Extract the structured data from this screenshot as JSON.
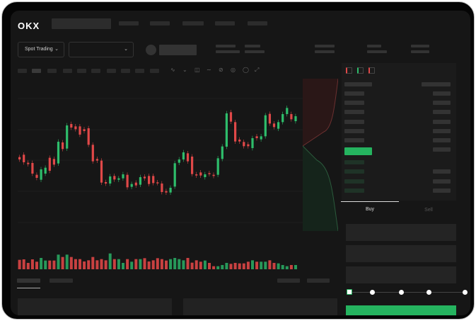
{
  "brand": {
    "logo": "OKX"
  },
  "toolbar": {
    "market_type": "Spot Trading",
    "pair_selector": ""
  },
  "trade_form": {
    "tabs": [
      "Buy",
      "Sell"
    ],
    "active_tab": "Buy",
    "leverage_steps": 5,
    "selected_step": 0
  },
  "colors": {
    "up": "#2ebd6b",
    "down": "#e04848",
    "background": "#161616",
    "accent": "#25b35f"
  },
  "chart_data": {
    "type": "candlestick",
    "candles": [
      [
        49,
        48
      ],
      [
        50,
        46.8
      ],
      [
        46.6,
        46
      ],
      [
        46.5,
        42
      ],
      [
        41.5,
        40.2
      ],
      [
        39.4,
        43.8
      ],
      [
        42,
        44.5
      ],
      [
        48.7,
        43.2
      ],
      [
        48.2,
        45.8
      ],
      [
        46.3,
        55.5
      ],
      [
        55.2,
        52.4
      ],
      [
        52.6,
        62.4
      ],
      [
        63,
        61.5
      ],
      [
        62,
        60.8
      ],
      [
        62,
        58.5
      ],
      [
        60.8,
        60
      ],
      [
        61.2,
        54.2
      ],
      [
        54.2,
        47.2
      ],
      [
        48.2,
        47.5
      ],
      [
        47.5,
        38.2
      ],
      [
        38.4,
        37.8
      ],
      [
        37.8,
        40.8
      ],
      [
        41,
        39.5
      ],
      [
        39.4,
        40
      ],
      [
        40,
        41.7
      ],
      [
        41.5,
        36.2
      ],
      [
        36.4,
        37.6
      ],
      [
        38.2,
        37
      ],
      [
        37.3,
        40.5
      ],
      [
        40.7,
        40
      ],
      [
        41,
        37.6
      ],
      [
        41,
        38
      ],
      [
        38.3,
        38
      ],
      [
        37.8,
        34.2
      ],
      [
        34.6,
        34
      ],
      [
        34,
        36
      ],
      [
        36.5,
        46.4
      ],
      [
        46.6,
        48
      ],
      [
        48,
        51
      ],
      [
        50.6,
        47.2
      ],
      [
        49.2,
        41.8
      ],
      [
        41.7,
        41.2
      ],
      [
        42.5,
        41.2
      ],
      [
        40.5,
        41.7
      ],
      [
        42.2,
        41.8
      ],
      [
        41.5,
        41
      ],
      [
        41.5,
        48.5
      ],
      [
        48.2,
        53.5
      ],
      [
        53.4,
        67.5
      ],
      [
        68,
        64
      ],
      [
        63.8,
        55.6
      ],
      [
        56.4,
        55.6
      ],
      [
        55.4,
        53.6
      ],
      [
        54.4,
        53.6
      ],
      [
        52.8,
        57
      ],
      [
        57.8,
        57
      ],
      [
        56.5,
        57.8
      ],
      [
        57.8,
        66.7
      ],
      [
        67.3,
        63.2
      ],
      [
        63.2,
        61.7
      ],
      [
        61,
        63.8
      ],
      [
        63.8,
        67.2
      ],
      [
        67.2,
        69.8
      ],
      [
        67.2,
        65
      ],
      [
        64.2,
        66.3
      ]
    ],
    "volume": [
      40,
      42,
      27,
      42,
      32,
      48,
      37,
      37,
      37,
      62,
      52,
      62,
      52,
      43,
      43,
      33,
      38,
      52,
      38,
      43,
      38,
      67,
      43,
      43,
      27,
      43,
      32,
      43,
      43,
      47,
      33,
      38,
      47,
      43,
      37,
      43,
      48,
      43,
      38,
      48,
      28,
      38,
      32,
      37,
      27,
      13,
      13,
      18,
      27,
      23,
      27,
      25,
      25,
      32,
      38,
      32,
      32,
      32,
      38,
      27,
      25,
      18,
      13,
      18,
      18
    ]
  }
}
